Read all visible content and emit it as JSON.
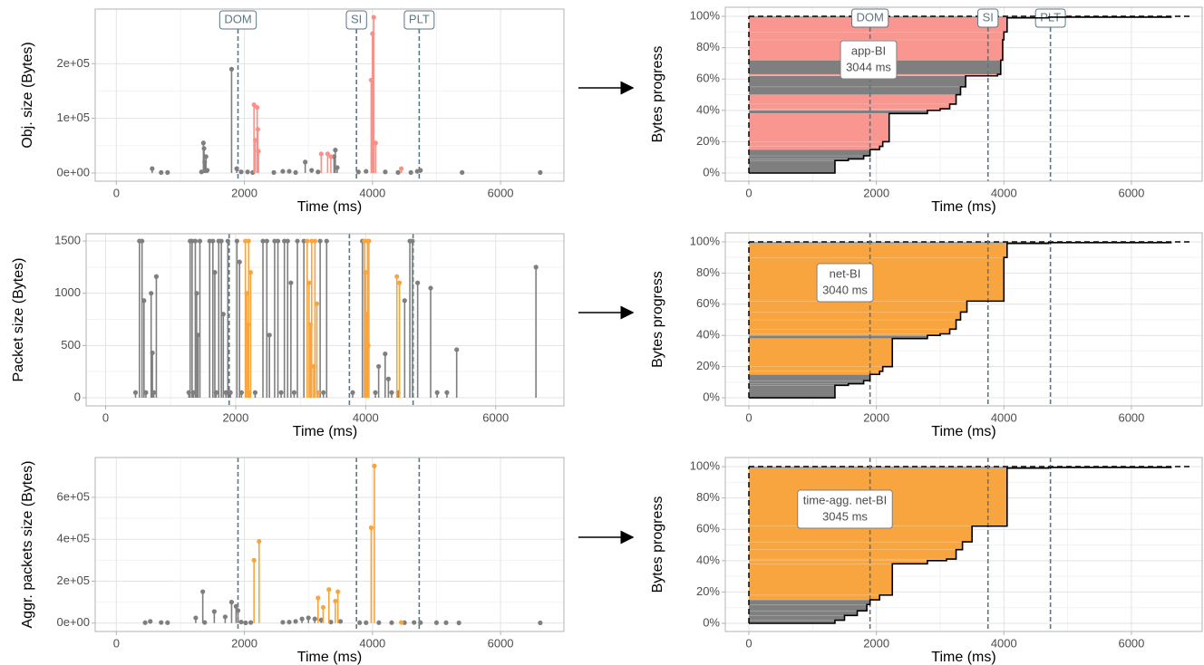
{
  "chart_data": [
    {
      "type": "lollipop",
      "ylabel": "Obj. size (Bytes)",
      "xlabel": "Time (ms)",
      "xlim": [
        -330,
        6990
      ],
      "ylim": [
        -15000,
        300000
      ],
      "xticks": [
        0,
        2000,
        4000,
        6000
      ],
      "yticks": [
        {
          "value": 0,
          "label": "0e+00"
        },
        {
          "value": 100000,
          "label": "1e+05"
        },
        {
          "value": 200000,
          "label": "2e+05"
        }
      ],
      "vlines": [
        {
          "value": 1900,
          "label": "DOM"
        },
        {
          "value": 3750,
          "label": "SI"
        },
        {
          "value": 4730,
          "label": "PLT"
        }
      ],
      "vline_color": "#5b7683",
      "series": [
        {
          "color": "#7f7f7f",
          "x": [
            560,
            700,
            800,
            1330,
            1360,
            1370,
            1380,
            1400,
            1420,
            1800,
            1880,
            1950,
            2050,
            2130,
            2460,
            2600,
            2700,
            2800,
            2950,
            3050,
            3150,
            3400,
            3420,
            3450,
            3780,
            3900,
            4200,
            4400,
            4600,
            4700,
            4750,
            5400,
            6620
          ],
          "values": [
            8000,
            1000,
            1000,
            2000,
            55000,
            45000,
            20000,
            30000,
            5000,
            190000,
            8000,
            2000,
            2000,
            1000,
            1000,
            3000,
            3000,
            1000,
            20000,
            5000,
            2000,
            30000,
            42000,
            10000,
            2000,
            3000,
            2000,
            1000,
            1000,
            3000,
            5000,
            1000,
            1000
          ]
        },
        {
          "color": "#f8918a",
          "x": [
            2150,
            2170,
            2200,
            2210,
            2220,
            3200,
            3300,
            3350,
            3980,
            4000,
            4020,
            4050,
            4450
          ],
          "values": [
            125000,
            60000,
            120000,
            80000,
            40000,
            35000,
            35000,
            30000,
            170000,
            255000,
            285000,
            55000,
            8000
          ]
        }
      ]
    },
    {
      "type": "progress",
      "ylabel": "Bytes progress",
      "xlabel": "Time (ms)",
      "xlim": [
        -370,
        7110
      ],
      "ylim": [
        -5.2,
        105.8
      ],
      "xticks": [
        0,
        2000,
        4000,
        6000
      ],
      "yticks": [
        {
          "value": 0,
          "label": "0%"
        },
        {
          "value": 20,
          "label": "20%"
        },
        {
          "value": 40,
          "label": "40%"
        },
        {
          "value": 60,
          "label": "60%"
        },
        {
          "value": 80,
          "label": "80%"
        },
        {
          "value": 100,
          "label": "100%"
        }
      ],
      "vlines": [
        {
          "value": 1900,
          "label": "DOM"
        },
        {
          "value": 3750,
          "label": "SI"
        },
        {
          "value": 4730,
          "label": "PLT"
        }
      ],
      "vline_color": "#5b7683",
      "hline": 100,
      "x": [
        0,
        1350,
        1560,
        1800,
        1900,
        2050,
        2100,
        2200,
        2800,
        3000,
        3150,
        3250,
        3320,
        3400,
        3900,
        3950,
        3980,
        4000,
        4050,
        4700,
        6620
      ],
      "values": [
        0,
        8,
        9,
        11,
        15,
        17,
        20,
        38,
        40,
        41,
        44,
        50,
        55,
        62,
        63,
        72,
        85,
        90,
        99,
        99.5,
        100
      ],
      "step_colors": [
        "#7f7f7f",
        "#7f7f7f",
        "#7f7f7f",
        "#7f7f7f",
        "#7f7f7f",
        "#f8968f",
        "#f8968f",
        "#f8968f",
        "#7f7f7f",
        "#f8968f",
        "#f8968f",
        "#f8968f",
        "#7f7f7f",
        "#7f7f7f",
        "#f8968f",
        "#7f7f7f",
        "#f8968f",
        "#f8968f",
        "#f8968f",
        "#7f7f7f",
        "#7f7f7f"
      ],
      "annotation": [
        "app-BI",
        "3044 ms"
      ]
    },
    {
      "type": "lollipop",
      "ylabel": "Packet size (Bytes)",
      "xlabel": "Time (ms)",
      "xlim": [
        -300,
        7050
      ],
      "ylim": [
        -78,
        1570
      ],
      "xticks": [
        0,
        2000,
        4000,
        6000
      ],
      "yticks": [
        0,
        500,
        1000,
        1500
      ],
      "vlines": [
        1900,
        3750,
        4730
      ],
      "vline_color": "#5b7683",
      "series": [
        {
          "color": "#7f7f7f",
          "x": [
            460,
            520,
            560,
            590,
            620,
            700,
            720,
            740,
            780,
            1280,
            1300,
            1330,
            1350,
            1380,
            1400,
            1420,
            1450,
            1600,
            1650,
            1680,
            1700,
            1740,
            1780,
            1810,
            1850,
            1880,
            1920,
            2020,
            2060,
            2090,
            2300,
            2420,
            2480,
            2520,
            2600,
            2650,
            2700,
            2750,
            2800,
            2850,
            2900,
            2950,
            3050,
            3300,
            3350,
            3400,
            3800,
            3950,
            4150,
            4200,
            4300,
            4350,
            4400,
            4500,
            4600,
            4680,
            4720,
            4800,
            5000,
            5100,
            5250,
            5400,
            6620
          ],
          "values": [
            50,
            1500,
            1500,
            930,
            50,
            1000,
            430,
            50,
            1160,
            50,
            1500,
            1500,
            50,
            1500,
            1000,
            600,
            1500,
            1500,
            1500,
            1200,
            50,
            1500,
            1500,
            800,
            50,
            1500,
            50,
            1500,
            1300,
            50,
            50,
            1500,
            1500,
            600,
            1500,
            1500,
            50,
            1500,
            1500,
            1100,
            50,
            1500,
            1500,
            1500,
            50,
            1500,
            50,
            1500,
            50,
            300,
            420,
            180,
            50,
            50,
            930,
            1500,
            1500,
            1100,
            1050,
            50,
            50,
            460,
            1250
          ]
        },
        {
          "color": "#f9a53f",
          "x": [
            2150,
            2170,
            2190,
            2200,
            2210,
            2230,
            3100,
            3130,
            3150,
            3170,
            3200,
            3220,
            3250,
            3270,
            3980,
            4000,
            4010,
            4020,
            4030,
            4040,
            4050,
            4480,
            4520
          ],
          "values": [
            1500,
            1000,
            700,
            1500,
            50,
            1200,
            1500,
            1100,
            700,
            1500,
            300,
            1500,
            900,
            50,
            1500,
            1200,
            50,
            800,
            1500,
            500,
            1500,
            1160,
            1100
          ]
        }
      ]
    },
    {
      "type": "progress",
      "ylabel": "Bytes progress",
      "xlabel": "Time (ms)",
      "xlim": [
        -370,
        7110
      ],
      "ylim": [
        -5.2,
        105.8
      ],
      "xticks": [
        0,
        2000,
        4000,
        6000
      ],
      "yticks": [
        {
          "value": 0,
          "label": "0%"
        },
        {
          "value": 20,
          "label": "20%"
        },
        {
          "value": 40,
          "label": "40%"
        },
        {
          "value": 60,
          "label": "60%"
        },
        {
          "value": 80,
          "label": "80%"
        },
        {
          "value": 100,
          "label": "100%"
        }
      ],
      "vlines": [
        1900,
        3750,
        4730
      ],
      "vline_color": "#5b7683",
      "hline": 100,
      "x": [
        0,
        1350,
        1560,
        1800,
        1900,
        2050,
        2100,
        2250,
        2800,
        3000,
        3150,
        3250,
        3320,
        3420,
        4000,
        4050,
        4700,
        6620
      ],
      "values": [
        0,
        8,
        9,
        11,
        15,
        17,
        20,
        38,
        40,
        41,
        44,
        50,
        55,
        62,
        90,
        99,
        99.5,
        100
      ],
      "step_colors": [
        "#7f7f7f",
        "#7f7f7f",
        "#7f7f7f",
        "#7f7f7f",
        "#7f7f7f",
        "#f9a53f",
        "#f9a53f",
        "#f9a53f",
        "#7f7f7f",
        "#f9a53f",
        "#f9a53f",
        "#f9a53f",
        "#f9a53f",
        "#f9a53f",
        "#f9a53f",
        "#f9a53f",
        "#7f7f7f",
        "#7f7f7f"
      ],
      "annotation": [
        "net-BI",
        "3040 ms"
      ]
    },
    {
      "type": "lollipop",
      "ylabel": "Aggr. packets size (Bytes)",
      "xlabel": "Time (ms)",
      "xlim": [
        -330,
        6990
      ],
      "ylim": [
        -40000,
        790000
      ],
      "xticks": [
        0,
        2000,
        4000,
        6000
      ],
      "yticks": [
        {
          "value": 0,
          "label": "0e+00"
        },
        {
          "value": 200000,
          "label": "2e+05"
        },
        {
          "value": 400000,
          "label": "4e+05"
        },
        {
          "value": 600000,
          "label": "6e+05"
        }
      ],
      "vlines": [
        1900,
        3750,
        4730
      ],
      "vline_color": "#5b7683",
      "series": [
        {
          "color": "#7f7f7f",
          "x": [
            450,
            530,
            700,
            800,
            1240,
            1350,
            1380,
            1530,
            1700,
            1800,
            1870,
            1900,
            1950,
            2020,
            2100,
            2600,
            2700,
            2800,
            2900,
            3000,
            3100,
            3200,
            3350,
            3500,
            3800,
            3900,
            4100,
            4300,
            4500,
            4650,
            4750,
            5000,
            5150,
            5350,
            6620
          ],
          "values": [
            2000,
            8000,
            3000,
            2000,
            25000,
            150000,
            3000,
            55000,
            30000,
            100000,
            80000,
            60000,
            5000,
            1000,
            3000,
            4000,
            5000,
            8000,
            20000,
            25000,
            20000,
            15000,
            5000,
            8000,
            2000,
            2000,
            2000,
            2000,
            2000,
            3000,
            2000,
            2000,
            2000,
            1000,
            1000
          ]
        },
        {
          "color": "#f9a53f",
          "x": [
            2150,
            2230,
            3150,
            3230,
            3320,
            3420,
            3460,
            3980,
            4030,
            4450
          ],
          "values": [
            300000,
            390000,
            120000,
            75000,
            160000,
            105000,
            150000,
            455000,
            750000,
            3000
          ]
        }
      ]
    },
    {
      "type": "progress",
      "ylabel": "Bytes progress",
      "xlabel": "Time (ms)",
      "xlim": [
        -370,
        7110
      ],
      "ylim": [
        -5.2,
        105.8
      ],
      "xticks": [
        0,
        2000,
        4000,
        6000
      ],
      "yticks": [
        {
          "value": 0,
          "label": "0%"
        },
        {
          "value": 20,
          "label": "20%"
        },
        {
          "value": 40,
          "label": "40%"
        },
        {
          "value": 60,
          "label": "60%"
        },
        {
          "value": 80,
          "label": "80%"
        },
        {
          "value": 100,
          "label": "100%"
        }
      ],
      "vlines": [
        1900,
        3750,
        4730
      ],
      "vline_color": "#5b7683",
      "hline": 100,
      "x": [
        0,
        1350,
        1500,
        1700,
        1850,
        1900,
        2050,
        2250,
        2800,
        3100,
        3250,
        3350,
        3500,
        4050,
        4700,
        6620
      ],
      "values": [
        0,
        2,
        5,
        8,
        12,
        15,
        18,
        38,
        40,
        41,
        47,
        52,
        62,
        99,
        99.5,
        100
      ],
      "step_colors": [
        "#7f7f7f",
        "#7f7f7f",
        "#7f7f7f",
        "#7f7f7f",
        "#7f7f7f",
        "#7f7f7f",
        "#f9a53f",
        "#f9a53f",
        "#f9a53f",
        "#f9a53f",
        "#f9a53f",
        "#f9a53f",
        "#f9a53f",
        "#f9a53f",
        "#7f7f7f",
        "#7f7f7f"
      ],
      "annotation": [
        "time-agg. net-BI",
        "3045 ms"
      ]
    }
  ]
}
